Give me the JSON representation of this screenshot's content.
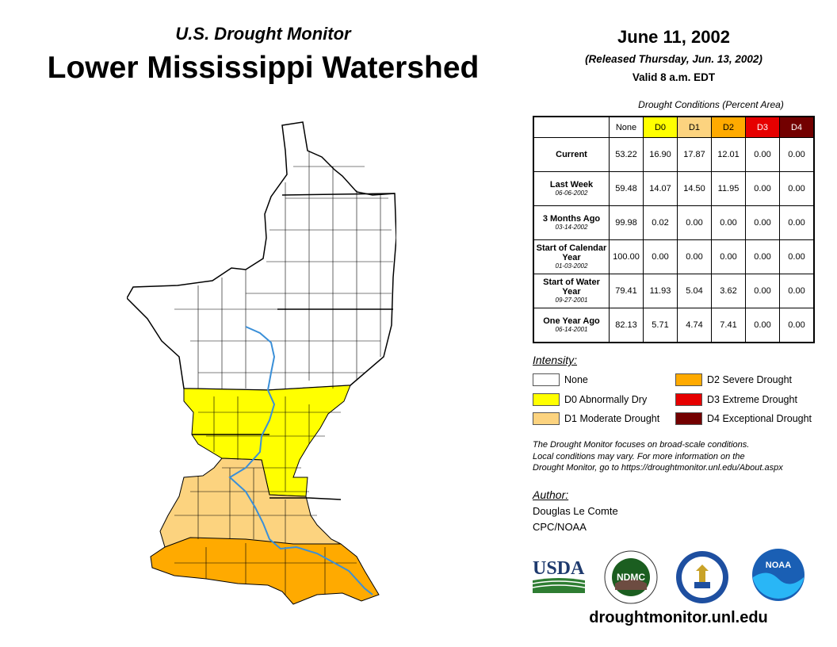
{
  "header": {
    "subtitle": "U.S. Drought Monitor",
    "title": "Lower Mississippi Watershed",
    "date": "June 11, 2002",
    "released": "(Released Thursday, Jun. 13, 2002)",
    "valid": "Valid 8 a.m. EDT"
  },
  "table": {
    "caption": "Drought Conditions (Percent Area)",
    "columns": [
      "None",
      "D0",
      "D1",
      "D2",
      "D3",
      "D4"
    ],
    "rows": [
      {
        "label": "Current",
        "date": "",
        "values": [
          "53.22",
          "16.90",
          "17.87",
          "12.01",
          "0.00",
          "0.00"
        ]
      },
      {
        "label": "Last Week",
        "date": "06-06-2002",
        "values": [
          "59.48",
          "14.07",
          "14.50",
          "11.95",
          "0.00",
          "0.00"
        ]
      },
      {
        "label": "3 Months Ago",
        "date": "03-14-2002",
        "values": [
          "99.98",
          "0.02",
          "0.00",
          "0.00",
          "0.00",
          "0.00"
        ]
      },
      {
        "label": "Start of Calendar Year",
        "date": "01-03-2002",
        "values": [
          "100.00",
          "0.00",
          "0.00",
          "0.00",
          "0.00",
          "0.00"
        ]
      },
      {
        "label": "Start of Water Year",
        "date": "09-27-2001",
        "values": [
          "79.41",
          "11.93",
          "5.04",
          "3.62",
          "0.00",
          "0.00"
        ]
      },
      {
        "label": "One Year Ago",
        "date": "06-14-2001",
        "values": [
          "82.13",
          "5.71",
          "4.74",
          "7.41",
          "0.00",
          "0.00"
        ]
      }
    ]
  },
  "legend": {
    "title": "Intensity:",
    "items": [
      {
        "label": "None",
        "color": "#ffffff"
      },
      {
        "label": "D0 Abnormally Dry",
        "color": "#ffff00"
      },
      {
        "label": "D1 Moderate Drought",
        "color": "#fcd37f"
      },
      {
        "label": "D2 Severe Drought",
        "color": "#ffaa00"
      },
      {
        "label": "D3 Extreme Drought",
        "color": "#e60000"
      },
      {
        "label": "D4 Exceptional Drought",
        "color": "#730000"
      }
    ]
  },
  "note": {
    "line1": "The Drought Monitor focuses on broad-scale conditions.",
    "line2": "Local conditions may vary. For more information on the",
    "line3": "Drought Monitor, go to https://droughtmonitor.unl.edu/About.aspx"
  },
  "author": {
    "title": "Author:",
    "name": "Douglas Le Comte",
    "org": "CPC/NOAA"
  },
  "logos": {
    "usda": "USDA",
    "ndmc": "NDMC",
    "noaa": "NOAA"
  },
  "website": "droughtmonitor.unl.edu",
  "colors": {
    "river": "#3a8fd8",
    "border": "#000000"
  }
}
